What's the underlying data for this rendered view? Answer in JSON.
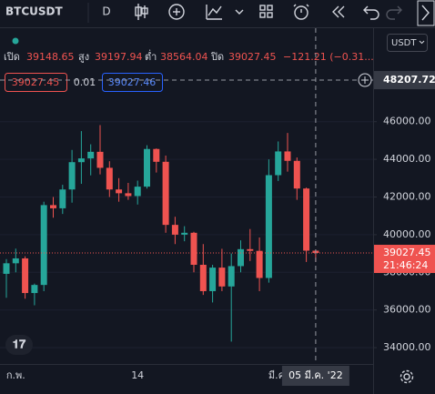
{
  "toolbar": {
    "symbol": "BTCUSDT",
    "interval": "D"
  },
  "legend": {
    "open_label": "เปิด",
    "high_label": "สูง",
    "low_label": "ต่ำ",
    "close_label": "ปิด",
    "change": "−121.21 (−0.31..."
  },
  "order": {
    "sell": "39027.45",
    "quantity": "0.01",
    "buy": "39027.46"
  },
  "currency": "USDT",
  "chart_data": {
    "type": "candlestick",
    "categories": [
      null,
      "ก.พ.",
      null,
      null,
      null,
      null,
      null,
      null,
      null,
      null,
      null,
      null,
      null,
      null,
      "14",
      null,
      null,
      null,
      null,
      null,
      null,
      null,
      null,
      null,
      null,
      null,
      null,
      null,
      null,
      "มี.ค.",
      null,
      null,
      null,
      null
    ],
    "open": [
      37920,
      38480,
      38740,
      36900,
      37330,
      41570,
      41400,
      42400,
      43850,
      44050,
      44400,
      43550,
      42400,
      42200,
      42050,
      42550,
      44550,
      43870,
      40520,
      40000,
      40100,
      38400,
      37000,
      38250,
      37250,
      38330,
      39230,
      39140,
      37700,
      43160,
      44420,
      43920,
      42450,
      39148.65
    ],
    "high": [
      38700,
      39260,
      38850,
      37400,
      41750,
      42000,
      42650,
      44500,
      45500,
      44800,
      45820,
      43900,
      43000,
      42750,
      42870,
      44750,
      44580,
      44200,
      40950,
      40450,
      40150,
      39500,
      38400,
      39250,
      39000,
      39700,
      40300,
      39850,
      44000,
      44950,
      45400,
      44100,
      42500,
      39197.94
    ],
    "low": [
      36650,
      38000,
      36600,
      36250,
      37000,
      40900,
      41100,
      41700,
      42700,
      43150,
      43200,
      42000,
      41750,
      41850,
      41600,
      42450,
      43300,
      40100,
      39500,
      39650,
      38000,
      36800,
      36400,
      37000,
      34320,
      38000,
      38600,
      37000,
      37450,
      42850,
      43350,
      41850,
      38550,
      38564.04
    ],
    "close": [
      38480,
      38740,
      36900,
      37330,
      41570,
      41400,
      42400,
      43850,
      44050,
      44400,
      43550,
      42400,
      42200,
      42050,
      42550,
      44550,
      43870,
      40520,
      40000,
      40100,
      38400,
      37000,
      38250,
      37250,
      38330,
      39230,
      39140,
      37700,
      43160,
      44420,
      43920,
      42450,
      39150,
      39027.45
    ],
    "up_color": "#26a69a",
    "down_color": "#ef5350",
    "ylim": [
      33133,
      50964
    ],
    "yticks": [
      {
        "value": 34000,
        "label": "34000.00"
      },
      {
        "value": 36000,
        "label": "36000.00"
      },
      {
        "value": 38000,
        "label": "38000.00"
      },
      {
        "value": 40000,
        "label": "40000.00"
      },
      {
        "value": 42000,
        "label": "42000.00"
      },
      {
        "value": 44000,
        "label": "44000.00"
      },
      {
        "value": 46000,
        "label": "46000.00"
      }
    ],
    "countdown": "21:46:24",
    "crosshair": {
      "price": 48207.72,
      "index": 33,
      "date": "05 มี.ค. '22"
    }
  }
}
